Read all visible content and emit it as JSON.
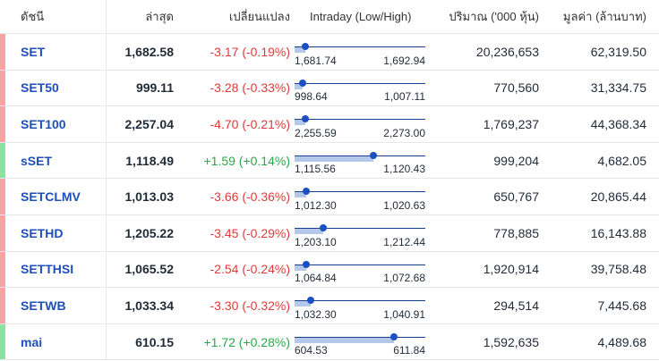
{
  "header": {
    "name": "ดัชนี",
    "last": "ล่าสุด",
    "change": "เปลี่ยนแปลง",
    "intraday": "Intraday (Low/High)",
    "volume": "ปริมาณ ('000 หุ้น)",
    "value": "มูลค่า (ล้านบาท)"
  },
  "colors": {
    "negative": "#e03a3a",
    "positive": "#2aa84a",
    "side_negative": "#f8a3a3",
    "side_positive": "#8fe0a3",
    "link": "#1e4fb8"
  },
  "rows": [
    {
      "name": "SET",
      "last": "1,682.58",
      "change": "-3.17 (-0.19%)",
      "dir": "neg",
      "low": "1,681.74",
      "high": "1,692.94",
      "position": 0.08,
      "volume": "20,236,653",
      "value": "62,319.50"
    },
    {
      "name": "SET50",
      "last": "999.11",
      "change": "-3.28 (-0.33%)",
      "dir": "neg",
      "low": "998.64",
      "high": "1,007.11",
      "position": 0.06,
      "volume": "770,560",
      "value": "31,334.75"
    },
    {
      "name": "SET100",
      "last": "2,257.04",
      "change": "-4.70 (-0.21%)",
      "dir": "neg",
      "low": "2,255.59",
      "high": "2,273.00",
      "position": 0.08,
      "volume": "1,769,237",
      "value": "44,368.34"
    },
    {
      "name": "sSET",
      "last": "1,118.49",
      "change": "+1.59 (+0.14%)",
      "dir": "pos",
      "low": "1,115.56",
      "high": "1,120.43",
      "position": 0.6,
      "volume": "999,204",
      "value": "4,682.05"
    },
    {
      "name": "SETCLMV",
      "last": "1,013.03",
      "change": "-3.66 (-0.36%)",
      "dir": "neg",
      "low": "1,012.30",
      "high": "1,020.63",
      "position": 0.09,
      "volume": "650,767",
      "value": "20,865.44"
    },
    {
      "name": "SETHD",
      "last": "1,205.22",
      "change": "-3.45 (-0.29%)",
      "dir": "neg",
      "low": "1,203.10",
      "high": "1,212.44",
      "position": 0.22,
      "volume": "778,885",
      "value": "16,143.88"
    },
    {
      "name": "SETTHSI",
      "last": "1,065.52",
      "change": "-2.54 (-0.24%)",
      "dir": "neg",
      "low": "1,064.84",
      "high": "1,072.68",
      "position": 0.09,
      "volume": "1,920,914",
      "value": "39,758.48"
    },
    {
      "name": "SETWB",
      "last": "1,033.34",
      "change": "-3.30 (-0.32%)",
      "dir": "neg",
      "low": "1,032.30",
      "high": "1,040.91",
      "position": 0.12,
      "volume": "294,514",
      "value": "7,445.68"
    },
    {
      "name": "mai",
      "last": "610.15",
      "change": "+1.72 (+0.28%)",
      "dir": "pos",
      "low": "604.53",
      "high": "611.84",
      "position": 0.76,
      "volume": "1,592,635",
      "value": "4,489.68"
    }
  ]
}
